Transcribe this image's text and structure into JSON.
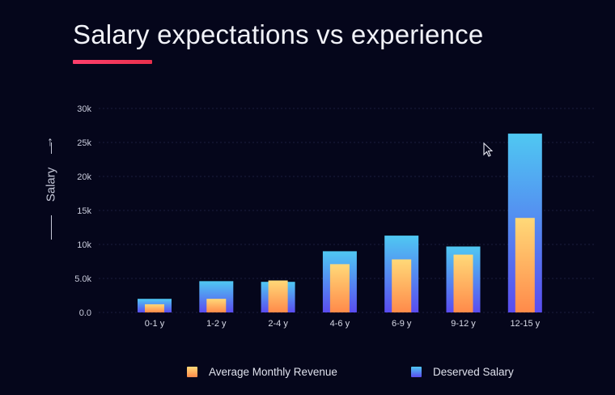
{
  "chart_data": {
    "type": "bar",
    "title": "Salary expectations vs experience",
    "ylabel": "Salary",
    "xlabel": "",
    "categories": [
      "0-1 y",
      "1-2 y",
      "2-4 y",
      "4-6 y",
      "6-9 y",
      "9-12 y",
      "12-15 y"
    ],
    "series": [
      {
        "name": "Deserved Salary",
        "values": [
          2000,
          4600,
          4500,
          9000,
          11300,
          9700,
          26300
        ]
      },
      {
        "name": "Average Monthly Revenue",
        "values": [
          1200,
          2000,
          4700,
          7100,
          7800,
          8500,
          13900
        ]
      }
    ],
    "ylim": [
      0,
      30000
    ],
    "yticks": [
      0,
      5000,
      10000,
      15000,
      20000,
      25000,
      30000
    ],
    "ytick_labels": [
      "0.0",
      "5.0k",
      "10k",
      "15k",
      "20k",
      "25k",
      "30k"
    ],
    "grid": true,
    "legend_position": "bottom",
    "overlapped_bars": true
  },
  "legend": {
    "revenue_label": "Average Monthly Revenue",
    "salary_label": "Deserved Salary"
  },
  "colors": {
    "background": "#05061b",
    "revenue_top": "#ffd978",
    "revenue_bottom": "#ff8a4a",
    "salary_top": "#4fc8f2",
    "salary_bottom": "#5a4cf0",
    "accent_underline": "#ff3f6c",
    "grid": "#1c1f3c"
  }
}
